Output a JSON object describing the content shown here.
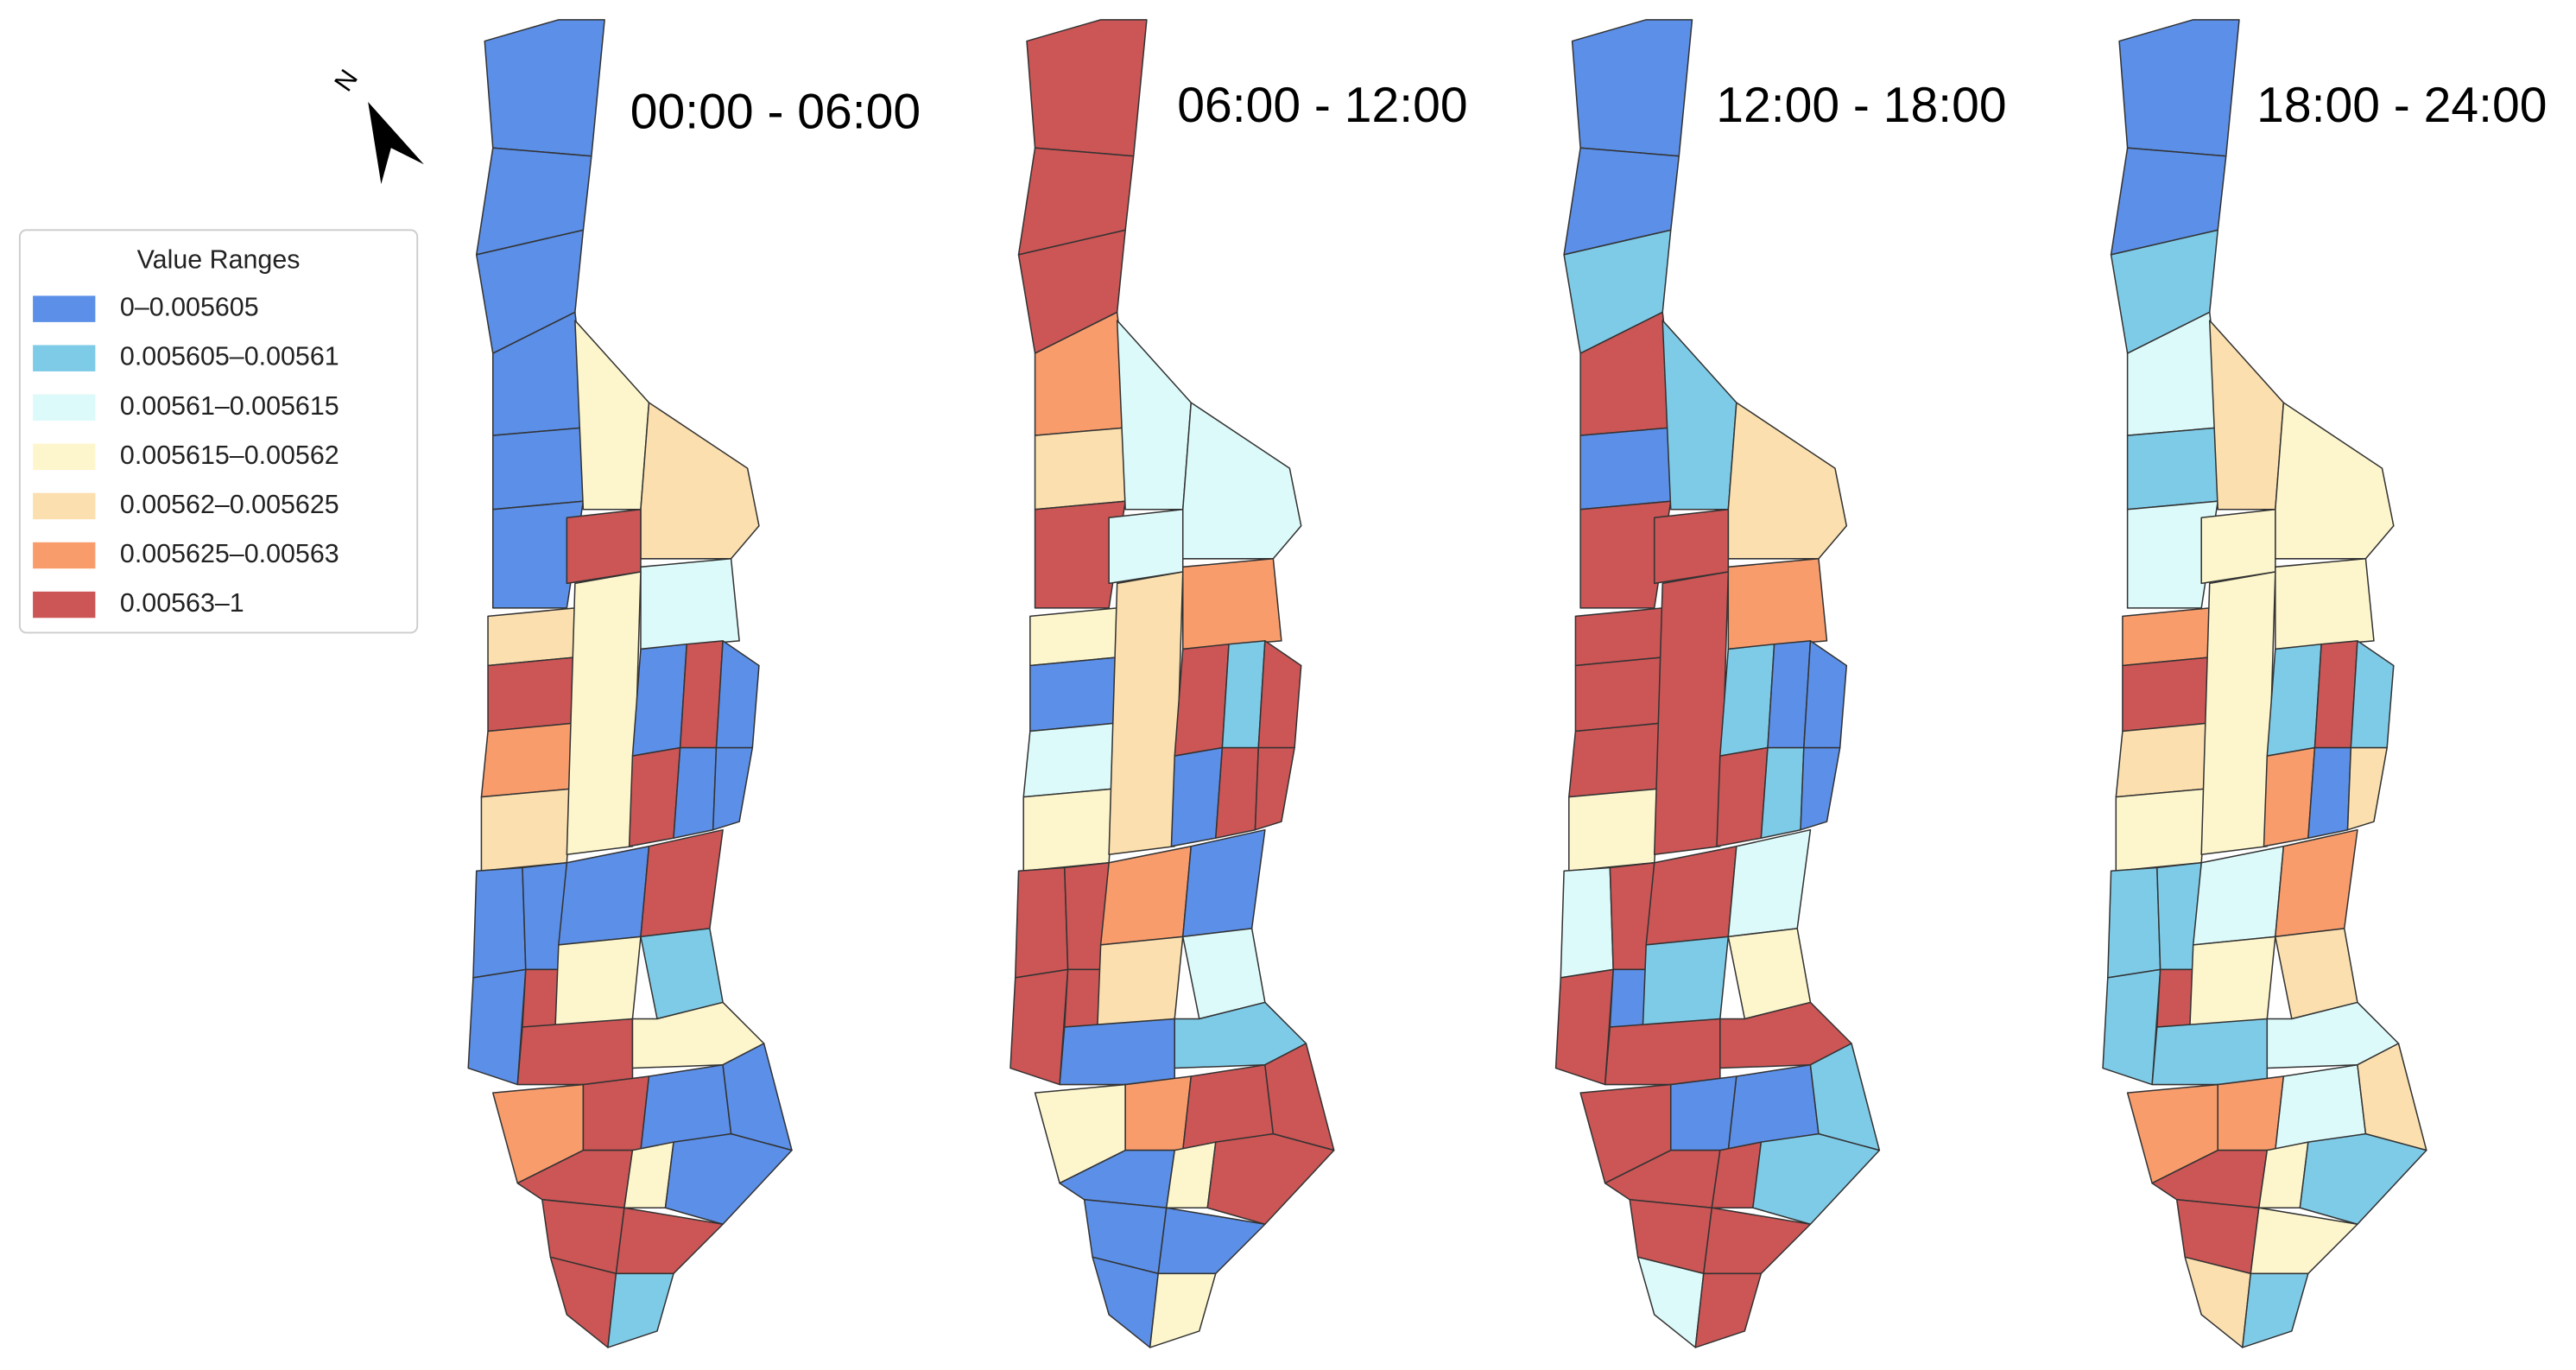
{
  "north_label": "N",
  "legend": {
    "title": "Value Ranges",
    "items": [
      {
        "label": "0–0.005605",
        "color": "#5b8fe8"
      },
      {
        "label": "0.005605–0.00561",
        "color": "#7ecbe8"
      },
      {
        "label": "0.00561–0.005615",
        "color": "#dcfafa"
      },
      {
        "label": "0.005615–0.00562",
        "color": "#fdf6cc"
      },
      {
        "label": "0.00562–0.005625",
        "color": "#fbdfae"
      },
      {
        "label": "0.005625–0.00563",
        "color": "#f89c6c"
      },
      {
        "label": "0.00563–1",
        "color": "#cc5555"
      }
    ]
  },
  "panels": [
    {
      "title": "00:00 - 06:00",
      "region_classes": [
        0,
        0,
        0,
        0,
        0,
        0,
        3,
        4,
        6,
        2,
        4,
        6,
        5,
        4,
        3,
        0,
        6,
        0,
        6,
        0,
        0,
        0,
        0,
        0,
        6,
        0,
        6,
        3,
        1,
        6,
        3,
        5,
        6,
        0,
        0,
        6,
        3,
        0,
        6,
        6,
        6,
        1
      ]
    },
    {
      "title": "06:00 - 12:00",
      "region_classes": [
        6,
        6,
        6,
        5,
        4,
        6,
        2,
        2,
        2,
        5,
        3,
        0,
        2,
        3,
        4,
        6,
        1,
        6,
        0,
        6,
        6,
        6,
        6,
        5,
        0,
        6,
        6,
        4,
        2,
        0,
        1,
        3,
        5,
        6,
        6,
        0,
        3,
        6,
        0,
        0,
        0,
        3
      ]
    },
    {
      "title": "12:00 - 18:00",
      "region_classes": [
        0,
        0,
        1,
        6,
        0,
        6,
        1,
        4,
        6,
        5,
        6,
        6,
        6,
        3,
        6,
        1,
        0,
        0,
        6,
        1,
        0,
        2,
        6,
        6,
        2,
        6,
        0,
        1,
        3,
        6,
        6,
        6,
        0,
        0,
        1,
        6,
        6,
        1,
        6,
        6,
        2,
        6
      ]
    },
    {
      "title": "18:00 - 24:00",
      "region_classes": [
        0,
        0,
        1,
        2,
        1,
        2,
        4,
        3,
        3,
        3,
        5,
        6,
        4,
        3,
        3,
        1,
        6,
        1,
        5,
        0,
        4,
        1,
        1,
        2,
        5,
        1,
        6,
        3,
        4,
        1,
        2,
        5,
        5,
        2,
        4,
        6,
        3,
        1,
        6,
        3,
        4,
        1
      ]
    }
  ]
}
